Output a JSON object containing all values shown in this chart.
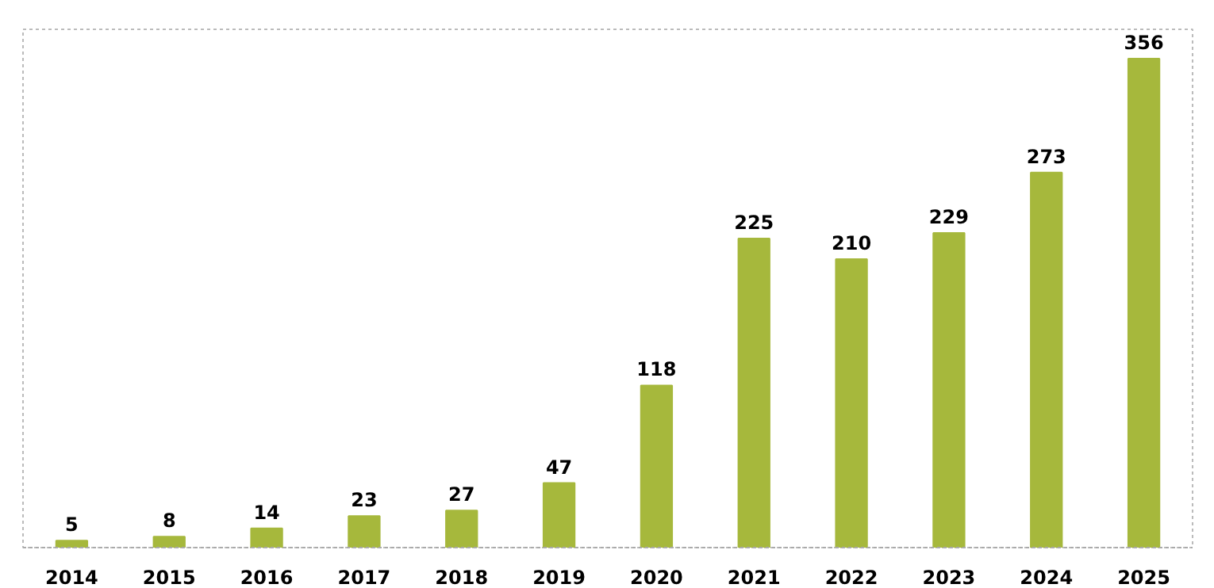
{
  "chart_data": {
    "type": "bar",
    "categories": [
      "2014",
      "2015",
      "2016",
      "2017",
      "2018",
      "2019",
      "2020",
      "2021",
      "2022",
      "2023",
      "2024",
      "2025"
    ],
    "values": [
      5,
      8,
      14,
      23,
      27,
      47,
      118,
      225,
      210,
      229,
      273,
      356
    ],
    "color": "#a6b83c",
    "data_labels": true,
    "grid": false
  }
}
